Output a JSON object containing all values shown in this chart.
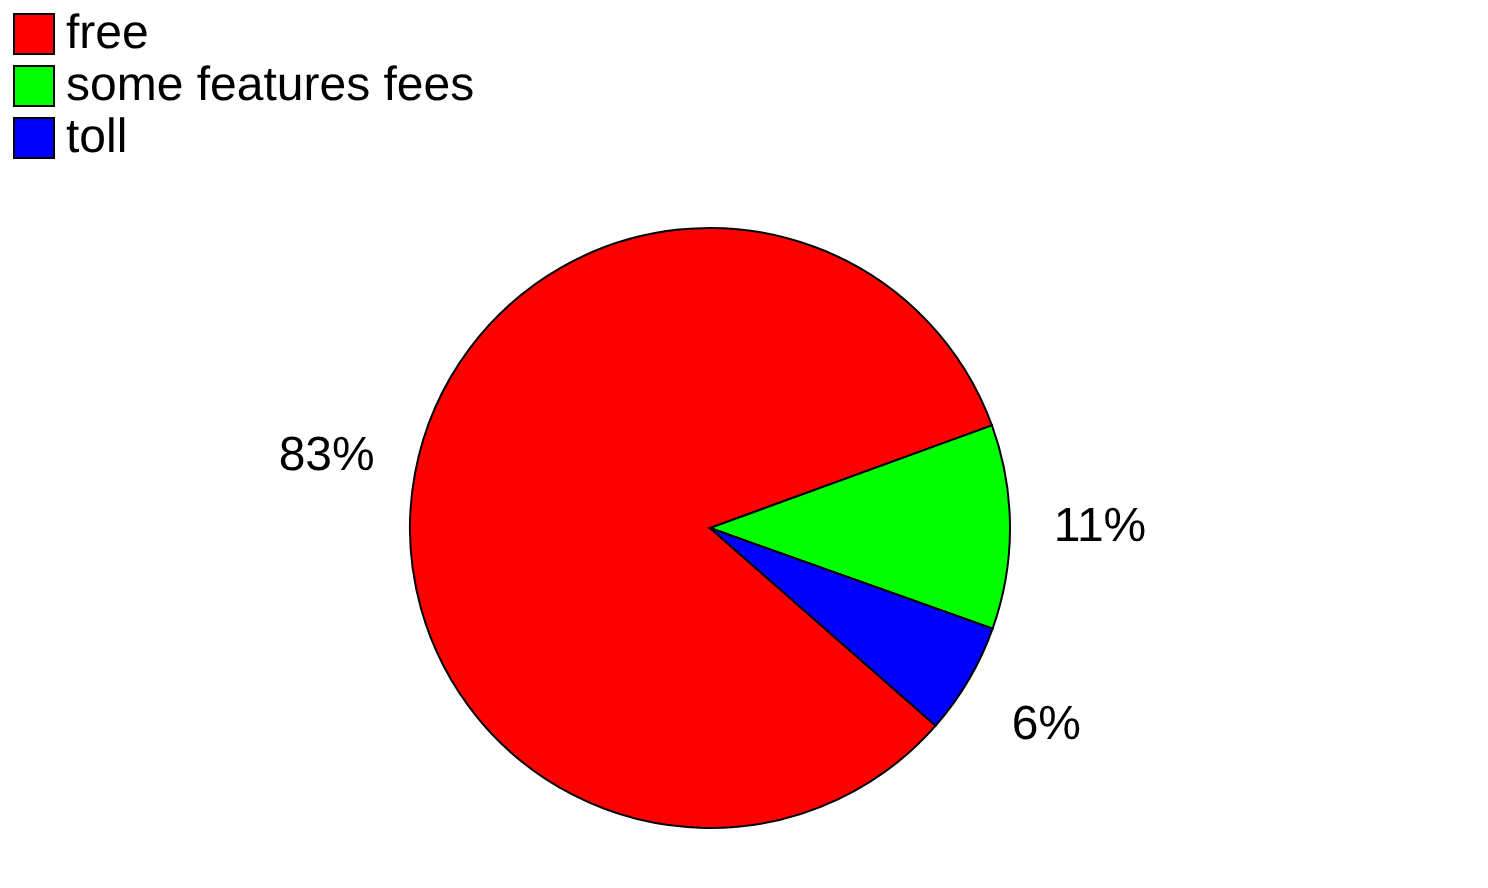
{
  "chart_data": {
    "type": "pie",
    "categories": [
      "free",
      "some features fees",
      "toll"
    ],
    "values": [
      83,
      11,
      6
    ],
    "colors": [
      "#ff0000",
      "#00ff00",
      "#0000ff"
    ],
    "value_labels": [
      "83%",
      "11%",
      "6%"
    ],
    "legend": "top"
  }
}
